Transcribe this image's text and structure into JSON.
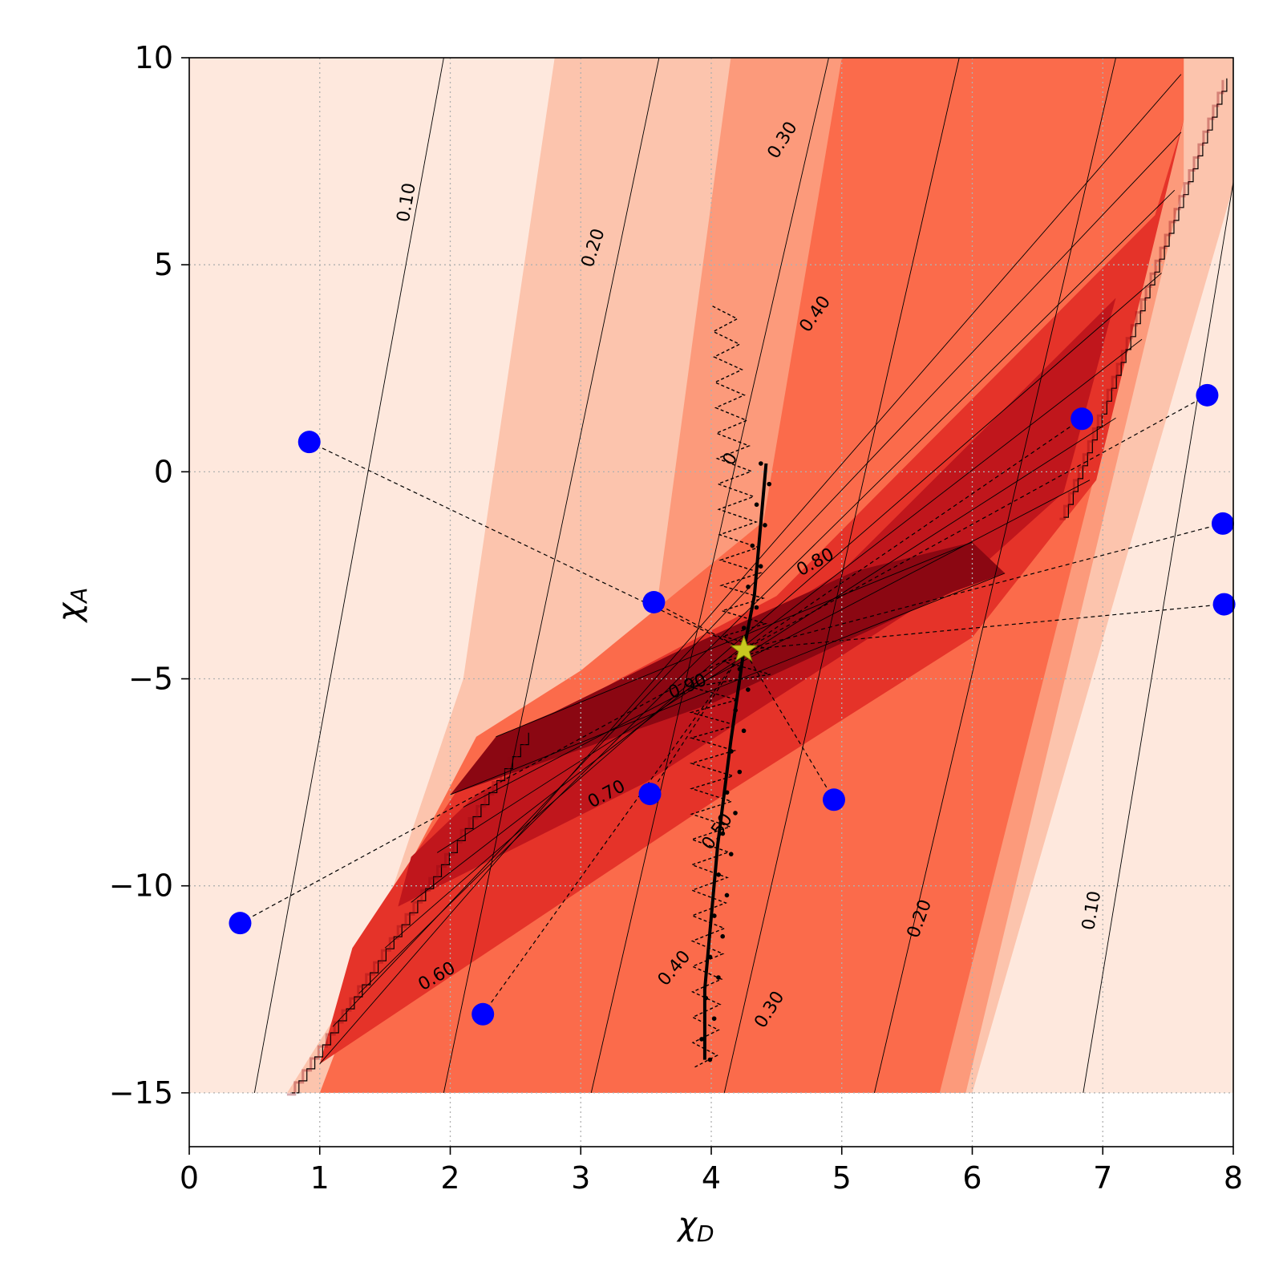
{
  "chart_data": {
    "type": "contour",
    "xlabel": "χ",
    "xlabel_sub": "D",
    "ylabel": "χ",
    "ylabel_sub": "A",
    "xlim": [
      0,
      8
    ],
    "ylim": [
      -16.3,
      10
    ],
    "x_ticks": [
      0,
      1,
      2,
      3,
      4,
      5,
      6,
      7,
      8
    ],
    "y_ticks": [
      10,
      5,
      0,
      -5,
      -10,
      -15
    ],
    "x_tick_labels": [
      "0",
      "1",
      "2",
      "3",
      "4",
      "5",
      "6",
      "7",
      "8"
    ],
    "y_tick_labels": [
      "10",
      "5",
      "0",
      "−5",
      "−10",
      "−15"
    ],
    "grid": true,
    "contour_levels": [
      0.1,
      0.2,
      0.3,
      0.4,
      0.5,
      0.6,
      0.7,
      0.8,
      0.9
    ],
    "fill_colors": [
      "#fee8dd",
      "#fcc4ad",
      "#fc9a7b",
      "#fb6b4b",
      "#e53329",
      "#c0161c",
      "#8b0712"
    ],
    "contour_labels": [
      {
        "text": "0.10",
        "x": 1.67,
        "y": 6.5,
        "angle": -80
      },
      {
        "text": "0.20",
        "x": 3.1,
        "y": 5.4,
        "angle": -72
      },
      {
        "text": "0.30",
        "x": 4.55,
        "y": 8.0,
        "angle": -58
      },
      {
        "text": "0.40",
        "x": 4.8,
        "y": 3.8,
        "angle": -55
      },
      {
        "text": "0.80",
        "x": 4.8,
        "y": -2.2,
        "angle": -28
      },
      {
        "text": "0.90",
        "x": 3.82,
        "y": -5.2,
        "angle": -22
      },
      {
        "text": "0.70",
        "x": 3.2,
        "y": -7.8,
        "angle": -28
      },
      {
        "text": "0.60",
        "x": 1.9,
        "y": -12.2,
        "angle": -30
      },
      {
        "text": "0.50",
        "x": 4.05,
        "y": -8.7,
        "angle": -55
      },
      {
        "text": "0.40",
        "x": 3.72,
        "y": -12.0,
        "angle": -50
      },
      {
        "text": "0.30",
        "x": 4.45,
        "y": -13.0,
        "angle": -58
      },
      {
        "text": "0.20",
        "x": 5.6,
        "y": -10.8,
        "angle": -70
      },
      {
        "text": "0.10",
        "x": 6.92,
        "y": -10.6,
        "angle": -80
      },
      {
        "text": "0",
        "x": 4.15,
        "y": 0.3,
        "angle": -60
      }
    ],
    "initial_points": [
      {
        "x": 0.92,
        "y": 0.72
      },
      {
        "x": 0.39,
        "y": -10.9
      },
      {
        "x": 2.25,
        "y": -13.1
      },
      {
        "x": 3.56,
        "y": -3.15
      },
      {
        "x": 3.53,
        "y": -7.78
      },
      {
        "x": 4.94,
        "y": -7.92
      },
      {
        "x": 6.84,
        "y": 1.28
      },
      {
        "x": 7.8,
        "y": 1.85
      },
      {
        "x": 7.92,
        "y": -1.25
      },
      {
        "x": 7.93,
        "y": -3.2
      }
    ],
    "optimum": {
      "x": 4.25,
      "y": -4.3
    }
  }
}
